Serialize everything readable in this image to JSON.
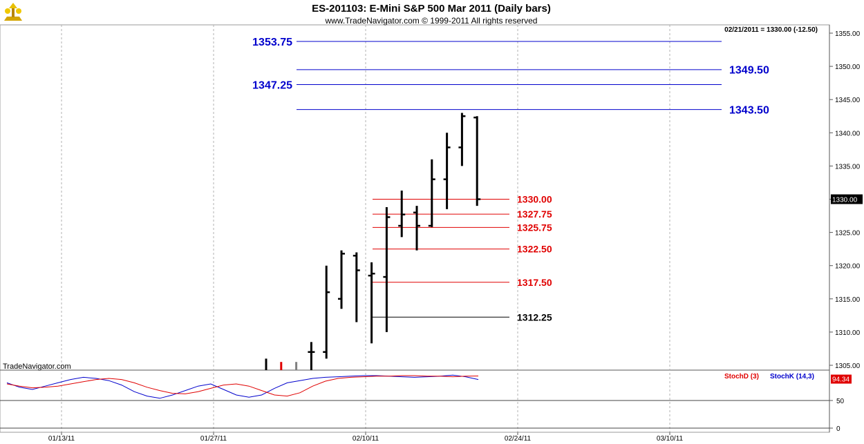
{
  "header": {
    "title": "ES-201103:  E-Mini S&P 500 Mar 2011  (Daily bars)",
    "copyright": "www.TradeNavigator.com © 1999-2011 All rights reserved"
  },
  "readout": "02/21/2011 = 1330.00 (-12.50)",
  "watermark": "TradeNavigator.com",
  "colors": {
    "blue_level": "#0000cc",
    "red_level": "#e00000",
    "black_level": "#000000",
    "stoch_d": "#e00000",
    "stoch_k": "#0000cc",
    "grid": "#b0b0b0",
    "price_tag_bg": "#000000"
  },
  "chart_data": {
    "type": "ohlc",
    "title": "ES-201103:  E-Mini S&P 500 Mar 2011  (Daily bars)",
    "y_axis": {
      "ylim": [
        1304,
        1357
      ],
      "ticks": [
        1305.0,
        1310.0,
        1315.0,
        1320.0,
        1325.0,
        1330.0,
        1335.0,
        1340.0,
        1345.0,
        1350.0,
        1355.0
      ],
      "tick_labels": [
        "1305.00",
        "1310.00",
        "1315.00",
        "1320.00",
        "1325.00",
        "1330.00",
        "1335.00",
        "1340.00",
        "1345.00",
        "1350.00",
        "1355.00"
      ],
      "current_price_label": "1330.00",
      "current_price": 1330.0
    },
    "x_axis": {
      "tick_labels": [
        "01/13/11",
        "01/27/11",
        "02/10/11",
        "02/24/11",
        "03/10/11"
      ],
      "grid": true
    },
    "bars": [
      {
        "date": "01/31/11",
        "open": null,
        "high": 1306.0,
        "low": 1304.0,
        "close": null,
        "color": "#000000"
      },
      {
        "date": "02/01/11",
        "open": null,
        "high": 1305.5,
        "low": 1304.0,
        "close": null,
        "color": "#e00000"
      },
      {
        "date": "02/02/11",
        "open": null,
        "high": 1305.5,
        "low": 1304.0,
        "close": null,
        "color": "#808080"
      },
      {
        "date": "02/03/11",
        "open": 1307.0,
        "high": 1308.5,
        "low": 1304.0,
        "close": 1307.0,
        "color": "#000000"
      },
      {
        "date": "02/04/11",
        "open": 1307.0,
        "high": 1320.0,
        "low": 1306.0,
        "close": 1316.0,
        "color": "#000000"
      },
      {
        "date": "02/07/11",
        "open": 1315.0,
        "high": 1322.3,
        "low": 1313.5,
        "close": 1321.8,
        "color": "#000000"
      },
      {
        "date": "02/08/11",
        "open": 1321.5,
        "high": 1322.0,
        "low": 1311.5,
        "close": 1319.3,
        "color": "#000000"
      },
      {
        "date": "02/09/11",
        "open": 1318.5,
        "high": 1320.5,
        "low": 1308.3,
        "close": 1318.8,
        "color": "#000000"
      },
      {
        "date": "02/10/11",
        "open": 1318.3,
        "high": 1328.8,
        "low": 1310.0,
        "close": 1327.3,
        "color": "#000000"
      },
      {
        "date": "02/11/11",
        "open": 1326.0,
        "high": 1331.3,
        "low": 1324.3,
        "close": 1327.7,
        "color": "#000000"
      },
      {
        "date": "02/14/11",
        "open": 1328.0,
        "high": 1329.0,
        "low": 1322.3,
        "close": 1326.0,
        "color": "#000000"
      },
      {
        "date": "02/15/11",
        "open": 1326.0,
        "high": 1336.0,
        "low": 1325.8,
        "close": 1333.0,
        "color": "#000000"
      },
      {
        "date": "02/16/11",
        "open": 1333.0,
        "high": 1340.0,
        "low": 1328.5,
        "close": 1337.8,
        "color": "#000000"
      },
      {
        "date": "02/17/11",
        "open": 1337.8,
        "high": 1343.0,
        "low": 1335.0,
        "close": 1342.5,
        "color": "#000000"
      },
      {
        "date": "02/18/11",
        "open": 1342.3,
        "high": 1342.5,
        "low": 1329.0,
        "close": 1330.0,
        "color": "#000000"
      }
    ],
    "levels": [
      {
        "label": "1353.75",
        "value": 1353.75,
        "color": "#0000cc",
        "label_side": "left"
      },
      {
        "label": "1349.50",
        "value": 1349.5,
        "color": "#0000cc",
        "label_side": "right"
      },
      {
        "label": "1347.25",
        "value": 1347.25,
        "color": "#0000cc",
        "label_side": "left"
      },
      {
        "label": "1343.50",
        "value": 1343.5,
        "color": "#0000cc",
        "label_side": "right"
      },
      {
        "label": "1330.00",
        "value": 1330.0,
        "color": "#e00000",
        "label_side": "right"
      },
      {
        "label": "1327.75",
        "value": 1327.75,
        "color": "#e00000",
        "label_side": "right"
      },
      {
        "label": "1325.75",
        "value": 1325.75,
        "color": "#e00000",
        "label_side": "right"
      },
      {
        "label": "1322.50",
        "value": 1322.5,
        "color": "#e00000",
        "label_side": "right"
      },
      {
        "label": "1317.50",
        "value": 1317.5,
        "color": "#e00000",
        "label_side": "right"
      },
      {
        "label": "1312.25",
        "value": 1312.25,
        "color": "#000000",
        "label_side": "right"
      }
    ],
    "indicator": {
      "legend_d": "StochD (3)",
      "legend_k": "StochK (14,3)",
      "last_value_label": "94.34",
      "ylim": [
        0,
        100
      ],
      "tick_labels": [
        "50",
        "0"
      ],
      "tick_values": [
        50,
        0
      ],
      "stoch_d": [
        80,
        76,
        73,
        74,
        76,
        80,
        84,
        88,
        90,
        88,
        82,
        74,
        68,
        63,
        62,
        66,
        72,
        78,
        80,
        76,
        68,
        60,
        58,
        64,
        76,
        85,
        90,
        92,
        93,
        94,
        94,
        95,
        95,
        94,
        94,
        93,
        94,
        94.34
      ],
      "stoch_k": [
        82,
        74,
        70,
        76,
        82,
        88,
        92,
        90,
        86,
        78,
        66,
        58,
        54,
        60,
        68,
        76,
        80,
        70,
        60,
        56,
        60,
        72,
        82,
        86,
        90,
        92,
        93,
        94,
        95,
        95,
        94,
        93,
        92,
        93,
        94,
        96,
        93,
        88
      ]
    }
  }
}
